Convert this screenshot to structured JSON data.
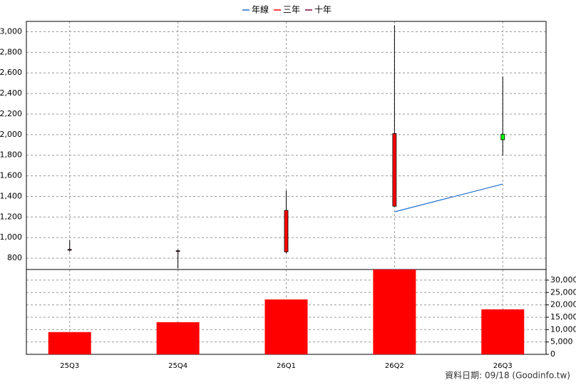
{
  "chart_data": {
    "type": "candlestick",
    "categories": [
      "25Q3",
      "25Q4",
      "26Q1",
      "26Q2",
      "26Q3"
    ],
    "open": [
      880,
      870,
      862,
      1305,
      2004
    ],
    "high": [
      973,
      883,
      1457,
      3063,
      2565
    ],
    "low": [
      862,
      700,
      848,
      1298,
      1797
    ],
    "close": [
      885,
      872,
      1264,
      2011,
      1950
    ],
    "up_color": "#ff0000",
    "down_color": "#00ff00",
    "series": [
      {
        "name": "年線",
        "color": "#1f6fd0",
        "values": [
          null,
          null,
          null,
          1250,
          1520
        ]
      },
      {
        "name": "三年",
        "color": "#ff0000",
        "values": [
          null,
          null,
          null,
          null,
          null
        ]
      },
      {
        "name": "十年",
        "color": "#8b0045",
        "values": [
          null,
          null,
          null,
          null,
          null
        ]
      }
    ],
    "volume": {
      "color": "#ff0000",
      "values": [
        9000,
        13000,
        22200,
        34300,
        18200
      ]
    },
    "ylim": [
      690,
      3100
    ],
    "yticks": [
      800,
      {
        "value": 1000,
        "label": "1,000"
      },
      {
        "value": 1200,
        "label": "1,200"
      },
      {
        "value": 1400,
        "label": "1,400"
      },
      {
        "value": 1600,
        "label": "1,600"
      },
      {
        "value": 1800,
        "label": "1,800"
      },
      {
        "value": 2000,
        "label": "2,000"
      },
      {
        "value": 2200,
        "label": "2,200"
      },
      {
        "value": 2400,
        "label": "2,400"
      },
      {
        "value": 2600,
        "label": "2,600"
      },
      {
        "value": 2800,
        "label": "2,800"
      },
      {
        "value": 3000,
        "label": "3,000"
      }
    ],
    "y2lim": [
      0,
      34300
    ],
    "y2ticks": [
      0,
      {
        "value": 5000,
        "label": "5,000"
      },
      {
        "value": 10000,
        "label": "10,000"
      },
      {
        "value": 15000,
        "label": "15,000"
      },
      {
        "value": 20000,
        "label": "20,000"
      },
      {
        "value": 25000,
        "label": "25,000"
      },
      {
        "value": 30000,
        "label": "30,000"
      }
    ],
    "grid": true,
    "footer": "資料日期: 09/18  (Goodinfo.tw)"
  }
}
